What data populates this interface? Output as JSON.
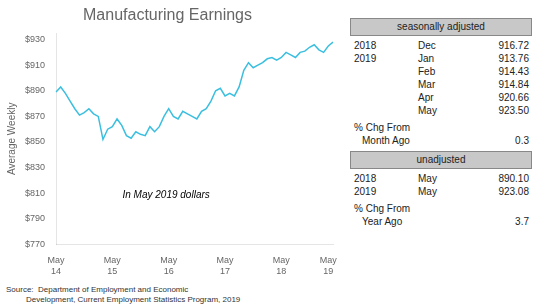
{
  "chart_data": {
    "type": "line",
    "title": "Manufacturing Earnings",
    "y_label": "Average Weekly",
    "annotation": "In May 2019 dollars",
    "source": "Source:  Department of Employment and Economic\n         Development, Current Employment Statistics Program, 2019",
    "color": "#3BBFDF",
    "grid": false,
    "legend": false,
    "categories": [
      "May\n14",
      null,
      null,
      null,
      null,
      null,
      null,
      null,
      null,
      null,
      null,
      null,
      "May\n15",
      null,
      null,
      null,
      null,
      null,
      null,
      null,
      null,
      null,
      null,
      null,
      "May\n16",
      null,
      null,
      null,
      null,
      null,
      null,
      null,
      null,
      null,
      null,
      null,
      "May\n17",
      null,
      null,
      null,
      null,
      null,
      null,
      null,
      null,
      null,
      null,
      null,
      "May\n18",
      null,
      null,
      null,
      null,
      null,
      null,
      null,
      null,
      null,
      "May\n19",
      null
    ],
    "values": [
      889,
      893,
      888,
      882,
      876,
      871,
      873,
      876,
      872,
      870,
      852,
      860,
      862,
      868,
      863,
      855,
      853,
      858,
      856,
      855,
      862,
      858,
      862,
      870,
      876,
      870,
      868,
      874,
      872,
      870,
      868,
      874,
      876,
      882,
      890,
      892,
      886,
      888,
      886,
      893,
      906,
      912,
      908,
      910,
      912,
      915,
      916,
      914,
      916,
      920,
      918,
      916,
      920,
      921,
      924,
      926,
      922,
      920,
      925,
      928
    ],
    "ylim": [
      770,
      935
    ],
    "yticks": [
      {
        "value": 770,
        "label": "$770"
      },
      {
        "value": 790,
        "label": "$790"
      },
      {
        "value": 810,
        "label": "$810"
      },
      {
        "value": 830,
        "label": "$830"
      },
      {
        "value": 850,
        "label": "$850"
      },
      {
        "value": 870,
        "label": "$870"
      },
      {
        "value": 890,
        "label": "$890"
      },
      {
        "value": 910,
        "label": "$910"
      },
      {
        "value": 930,
        "label": "$930"
      }
    ],
    "side_table": [
      {
        "header": "seasonally adjusted",
        "rows": [
          [
            "2018",
            "Dec",
            "916.72"
          ],
          [
            "2019",
            "Jan",
            "913.76"
          ],
          [
            null,
            "Feb",
            "914.43"
          ],
          [
            null,
            "Mar",
            "914.84"
          ],
          [
            null,
            "Apr",
            "920.66"
          ],
          [
            null,
            "May",
            "923.50"
          ]
        ],
        "change_label": "% Chg From",
        "change_period": "Month Ago",
        "change_value": "0.3"
      },
      {
        "header": "unadjusted",
        "rows": [
          [
            "2018",
            "May",
            "890.10"
          ],
          [
            "2019",
            "May",
            "923.08"
          ]
        ],
        "change_label": "% Chg From",
        "change_period": "Year Ago",
        "change_value": "3.7"
      }
    ]
  }
}
